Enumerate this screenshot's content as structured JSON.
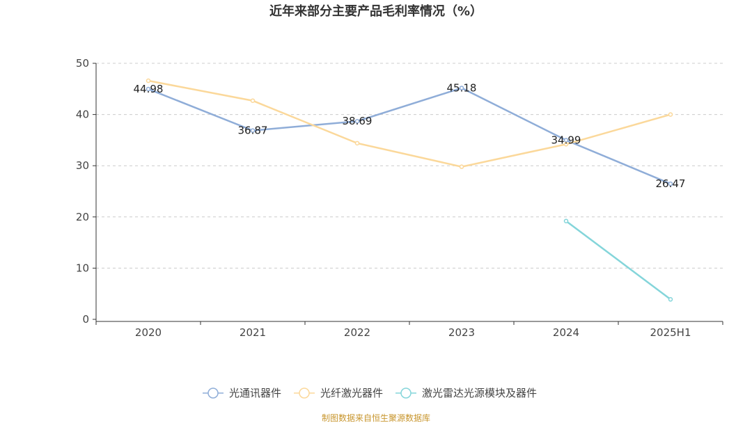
{
  "chart_data": {
    "type": "line",
    "title": "近年来部分主要产品毛利率情况（%）",
    "categories": [
      "2020",
      "2021",
      "2022",
      "2023",
      "2024",
      "2025H1"
    ],
    "ylim": [
      0,
      50
    ],
    "yticks": [
      0,
      10,
      20,
      30,
      40,
      50
    ],
    "grid": true,
    "legend_position": "bottom",
    "series": [
      {
        "name": "光通讯器件",
        "color": "#8fadd8",
        "show_labels": true,
        "values": [
          44.98,
          36.87,
          38.69,
          45.18,
          34.99,
          26.47
        ],
        "labels": [
          "44.98",
          "36.87",
          "38.69",
          "45.18",
          "34.99",
          "26.47"
        ]
      },
      {
        "name": "光纤激光器件",
        "color": "#fbd89a",
        "show_labels": false,
        "values": [
          46.6,
          42.7,
          34.4,
          29.8,
          34.2,
          40.0
        ]
      },
      {
        "name": "激光雷达光源模块及器件",
        "color": "#84d5da",
        "show_labels": false,
        "values": [
          null,
          null,
          null,
          null,
          19.2,
          3.9
        ]
      }
    ]
  },
  "footer": {
    "source": "制图数据来自恒生聚源数据库"
  }
}
